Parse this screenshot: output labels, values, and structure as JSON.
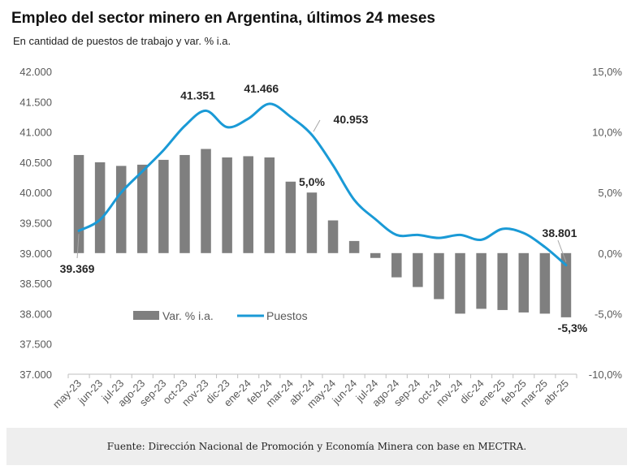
{
  "title": "Empleo del sector minero en Argentina, últimos 24 meses",
  "subtitle": "En cantidad de puestos de trabajo y var. % i.a.",
  "source": "Fuente: Dirección Nacional de Promoción y Economía Minera con base en MECTRA.",
  "colors": {
    "bar": "#7f7f7f",
    "line": "#1a9ad6",
    "text": "#595959",
    "label": "#262626"
  },
  "chart_data": {
    "type": "bar+line",
    "categories": [
      "may-23",
      "jun-23",
      "jul-23",
      "ago-23",
      "sep-23",
      "oct-23",
      "nov-23",
      "dic-23",
      "ene-24",
      "feb-24",
      "mar-24",
      "abr-24",
      "may-24",
      "jun-24",
      "jul-24",
      "ago-24",
      "sep-24",
      "oct-24",
      "nov-24",
      "dic-24",
      "ene-25",
      "feb-25",
      "mar-25",
      "abr-25"
    ],
    "left_axis": {
      "min": 37000,
      "max": 42000,
      "ticks": [
        "37.000",
        "37.500",
        "38.000",
        "38.500",
        "39.000",
        "39.500",
        "40.000",
        "40.500",
        "41.000",
        "41.500",
        "42.000"
      ]
    },
    "right_axis": {
      "min": -10,
      "max": 15,
      "ticks": [
        "-10,0%",
        "-5,0%",
        "0,0%",
        "5,0%",
        "10,0%",
        "15,0%"
      ]
    },
    "series": [
      {
        "name": "Var. % i.a.",
        "type": "bar",
        "axis": "right",
        "values": [
          8.1,
          7.5,
          7.2,
          7.3,
          7.7,
          8.1,
          8.6,
          7.9,
          8.0,
          7.9,
          5.9,
          5.0,
          2.7,
          1.0,
          -0.4,
          -2.0,
          -2.8,
          -3.8,
          -5.0,
          -4.6,
          -4.7,
          -4.9,
          -5.0,
          -5.3
        ]
      },
      {
        "name": "Puestos",
        "type": "line",
        "axis": "left",
        "values": [
          39369,
          39550,
          40000,
          40350,
          40700,
          41100,
          41351,
          41080,
          41220,
          41466,
          41250,
          40953,
          40450,
          39880,
          39560,
          39300,
          39300,
          39250,
          39300,
          39220,
          39400,
          39330,
          39100,
          38801
        ]
      }
    ],
    "annotations": [
      {
        "label": "39.369",
        "series": "Puestos",
        "index": 0
      },
      {
        "label": "41.351",
        "series": "Puestos",
        "index": 6
      },
      {
        "label": "41.466",
        "series": "Puestos",
        "index": 9
      },
      {
        "label": "40.953",
        "series": "Puestos",
        "index": 11
      },
      {
        "label": "5,0%",
        "series": "Var. % i.a.",
        "index": 11
      },
      {
        "label": "38.801",
        "series": "Puestos",
        "index": 23
      },
      {
        "label": "-5,3%",
        "series": "Var. % i.a.",
        "index": 23
      }
    ],
    "legend": {
      "position": "bottom-left-inside",
      "entries": [
        "Var. % i.a.",
        "Puestos"
      ]
    },
    "grid": false
  }
}
